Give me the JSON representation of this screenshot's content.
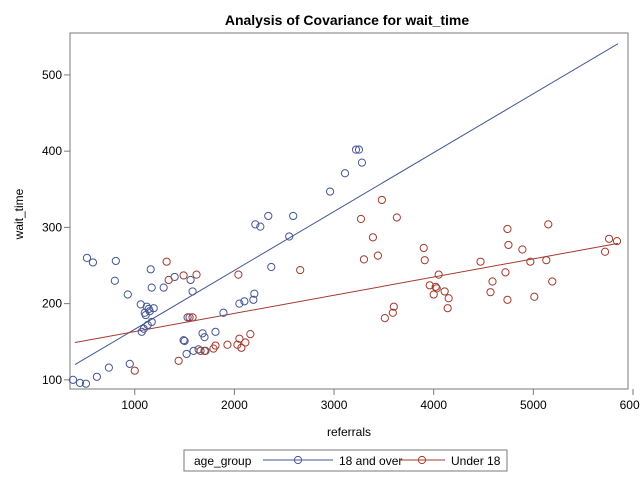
{
  "chart_data": {
    "type": "scatter",
    "title": "Analysis of Covariance for wait_time",
    "xlabel": "referrals",
    "ylabel": "wait_time",
    "xlim": [
      350,
      5950
    ],
    "ylim": [
      88,
      555
    ],
    "xticks": [
      1000,
      2000,
      3000,
      4000,
      5000,
      6000
    ],
    "yticks": [
      100,
      200,
      300,
      400,
      500
    ],
    "grid": false,
    "legend": {
      "title": "age_group",
      "position": "bottom",
      "entries": [
        "18 and over",
        "Under 18"
      ]
    },
    "series": [
      {
        "name": "18 and over",
        "color": "#445694",
        "marker": "circle",
        "fit_line": [
          [
            400,
            120
          ],
          [
            5850,
            541
          ]
        ],
        "points": [
          [
            380,
            100
          ],
          [
            450,
            96
          ],
          [
            510,
            95
          ],
          [
            520,
            260
          ],
          [
            580,
            254
          ],
          [
            620,
            104
          ],
          [
            740,
            116
          ],
          [
            800,
            230
          ],
          [
            810,
            256
          ],
          [
            930,
            212
          ],
          [
            950,
            121
          ],
          [
            1060,
            199
          ],
          [
            1070,
            163
          ],
          [
            1090,
            167
          ],
          [
            1100,
            188
          ],
          [
            1110,
            185
          ],
          [
            1120,
            196
          ],
          [
            1130,
            172
          ],
          [
            1140,
            193
          ],
          [
            1150,
            190
          ],
          [
            1160,
            245
          ],
          [
            1170,
            176
          ],
          [
            1170,
            221
          ],
          [
            1190,
            194
          ],
          [
            1290,
            221
          ],
          [
            1400,
            235
          ],
          [
            1490,
            152
          ],
          [
            1500,
            151
          ],
          [
            1520,
            134
          ],
          [
            1530,
            182
          ],
          [
            1560,
            231
          ],
          [
            1580,
            216
          ],
          [
            1590,
            138
          ],
          [
            1640,
            140
          ],
          [
            1680,
            161
          ],
          [
            1700,
            156
          ],
          [
            1710,
            138
          ],
          [
            1810,
            163
          ],
          [
            1890,
            188
          ],
          [
            2050,
            200
          ],
          [
            2100,
            203
          ],
          [
            2190,
            205
          ],
          [
            2200,
            213
          ],
          [
            2210,
            304
          ],
          [
            2260,
            301
          ],
          [
            2340,
            315
          ],
          [
            2370,
            248
          ],
          [
            2550,
            288
          ],
          [
            2590,
            315
          ],
          [
            2960,
            347
          ],
          [
            3110,
            371
          ],
          [
            3220,
            402
          ],
          [
            3250,
            402
          ],
          [
            3280,
            385
          ]
        ]
      },
      {
        "name": "Under 18",
        "color": "#A23A2E",
        "marker": "circle",
        "fit_line": [
          [
            400,
            149
          ],
          [
            5850,
            279
          ]
        ],
        "points": [
          [
            1000,
            112
          ],
          [
            1320,
            255
          ],
          [
            1340,
            231
          ],
          [
            1440,
            125
          ],
          [
            1490,
            237
          ],
          [
            1550,
            182
          ],
          [
            1580,
            182
          ],
          [
            1620,
            238
          ],
          [
            1660,
            138
          ],
          [
            1700,
            138
          ],
          [
            1790,
            141
          ],
          [
            1810,
            145
          ],
          [
            1930,
            146
          ],
          [
            2030,
            146
          ],
          [
            2040,
            238
          ],
          [
            2050,
            154
          ],
          [
            2070,
            142
          ],
          [
            2110,
            149
          ],
          [
            2160,
            160
          ],
          [
            2660,
            244
          ],
          [
            3270,
            311
          ],
          [
            3300,
            258
          ],
          [
            3390,
            287
          ],
          [
            3440,
            263
          ],
          [
            3480,
            336
          ],
          [
            3510,
            181
          ],
          [
            3590,
            188
          ],
          [
            3600,
            196
          ],
          [
            3630,
            313
          ],
          [
            3900,
            273
          ],
          [
            3910,
            257
          ],
          [
            3960,
            224
          ],
          [
            4000,
            212
          ],
          [
            4020,
            222
          ],
          [
            4030,
            220
          ],
          [
            4050,
            238
          ],
          [
            4110,
            216
          ],
          [
            4140,
            194
          ],
          [
            4150,
            207
          ],
          [
            4470,
            255
          ],
          [
            4570,
            215
          ],
          [
            4590,
            229
          ],
          [
            4720,
            241
          ],
          [
            4740,
            298
          ],
          [
            4740,
            205
          ],
          [
            4750,
            277
          ],
          [
            4890,
            271
          ],
          [
            4970,
            255
          ],
          [
            5010,
            209
          ],
          [
            5130,
            257
          ],
          [
            5150,
            304
          ],
          [
            5190,
            229
          ],
          [
            5720,
            268
          ],
          [
            5760,
            285
          ],
          [
            5840,
            282
          ]
        ]
      }
    ]
  }
}
